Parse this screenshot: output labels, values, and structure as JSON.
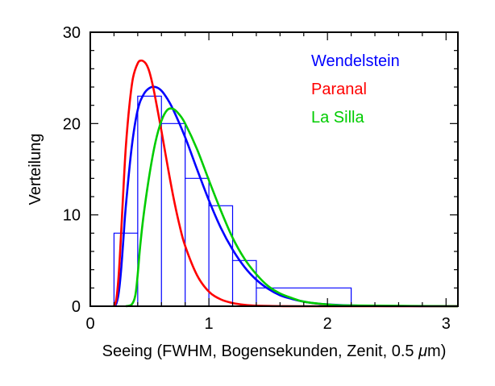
{
  "chart_data": {
    "type": "line",
    "title": "",
    "xlabel": "Seeing (FWHM, Bogensekunden, Zenit, 0.5 μm)",
    "ylabel": "Verteilung",
    "xlim": [
      0,
      3.1
    ],
    "ylim": [
      0,
      30
    ],
    "x_ticks": [
      0,
      1,
      2,
      3
    ],
    "y_ticks": [
      0,
      10,
      20,
      30
    ],
    "legend_position": "top-right",
    "histogram": {
      "name": "",
      "color": "#0000ff",
      "bins": [
        {
          "x0": 0.2,
          "x1": 0.4,
          "value": 8
        },
        {
          "x0": 0.4,
          "x1": 0.6,
          "value": 23
        },
        {
          "x0": 0.6,
          "x1": 0.8,
          "value": 20
        },
        {
          "x0": 0.8,
          "x1": 1.0,
          "value": 14
        },
        {
          "x0": 1.0,
          "x1": 1.2,
          "value": 11
        },
        {
          "x0": 1.2,
          "x1": 1.4,
          "value": 5
        },
        {
          "x0": 1.4,
          "x1": 2.2,
          "value": 2
        }
      ]
    },
    "series": [
      {
        "name": "Wendelstein",
        "color": "#0000ff",
        "x": [
          0.2,
          0.22,
          0.24,
          0.26,
          0.28,
          0.3,
          0.35,
          0.4,
          0.45,
          0.5,
          0.55,
          0.6,
          0.65,
          0.7,
          0.8,
          0.9,
          1.0,
          1.1,
          1.2,
          1.3,
          1.4,
          1.5,
          1.6,
          1.7,
          1.8,
          1.9,
          2.0,
          2.2,
          2.5,
          3.1
        ],
        "y": [
          0,
          0.3,
          1.5,
          4,
          7.5,
          11,
          17.5,
          21.5,
          23.2,
          23.9,
          24.0,
          23.6,
          22.7,
          21.5,
          18.5,
          15.0,
          11.6,
          8.6,
          6.2,
          4.3,
          2.9,
          1.9,
          1.2,
          0.8,
          0.5,
          0.3,
          0.2,
          0.08,
          0.02,
          0
        ]
      },
      {
        "name": "Paranal",
        "color": "#ff0000",
        "x": [
          0.2,
          0.22,
          0.24,
          0.26,
          0.28,
          0.3,
          0.33,
          0.36,
          0.4,
          0.43,
          0.46,
          0.48,
          0.5,
          0.53,
          0.56,
          0.6,
          0.65,
          0.7,
          0.75,
          0.8,
          0.9,
          1.0,
          1.1,
          1.2,
          1.3,
          1.4,
          1.6,
          1.8,
          3.1
        ],
        "y": [
          0,
          0.8,
          3.5,
          8,
          13,
          17.5,
          22,
          25,
          26.6,
          26.9,
          26.7,
          26.3,
          25.6,
          24,
          22,
          19.2,
          15.5,
          12,
          9,
          6.6,
          3.4,
          1.6,
          0.75,
          0.35,
          0.15,
          0.06,
          0.01,
          0,
          0
        ]
      },
      {
        "name": "La Silla",
        "color": "#00cc00",
        "x": [
          0.3,
          0.35,
          0.38,
          0.4,
          0.42,
          0.45,
          0.5,
          0.55,
          0.6,
          0.65,
          0.7,
          0.75,
          0.8,
          0.9,
          1.0,
          1.1,
          1.2,
          1.3,
          1.4,
          1.5,
          1.6,
          1.7,
          1.8,
          2.0,
          2.2,
          3.1
        ],
        "y": [
          0,
          0.2,
          1.2,
          3.5,
          6.5,
          10,
          14.5,
          18,
          20.3,
          21.5,
          21.6,
          21.0,
          20.0,
          17.2,
          13.8,
          10.5,
          7.5,
          5.2,
          3.5,
          2.2,
          1.4,
          0.9,
          0.5,
          0.2,
          0.08,
          0
        ]
      }
    ]
  }
}
